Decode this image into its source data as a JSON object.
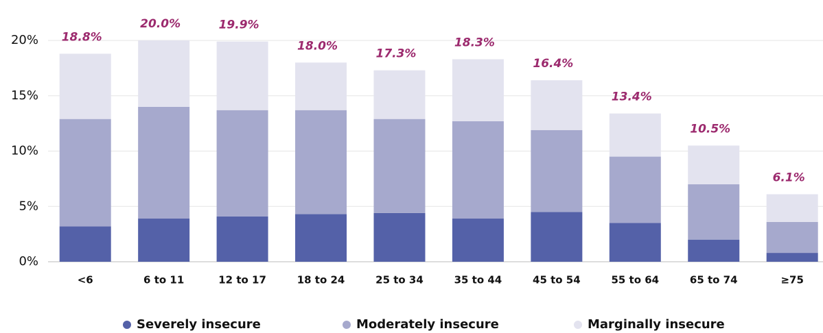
{
  "chart_data": {
    "type": "stacked_bar",
    "categories": [
      "<6",
      "6 to 11",
      "12 to 17",
      "18 to 24",
      "25 to 34",
      "35 to 44",
      "45 to 54",
      "55 to 64",
      "65 to 74",
      "≥75"
    ],
    "series": [
      {
        "name": "Severely insecure",
        "color": "#5461a8",
        "values": [
          3.2,
          3.9,
          4.1,
          4.3,
          4.4,
          3.9,
          4.5,
          3.5,
          2.0,
          0.8
        ]
      },
      {
        "name": "Moderately insecure",
        "color": "#a6a9cd",
        "values": [
          9.7,
          10.1,
          9.6,
          9.4,
          8.5,
          8.8,
          7.4,
          6.0,
          5.0,
          2.8
        ]
      },
      {
        "name": "Marginally insecure",
        "color": "#e3e3ef",
        "values": [
          5.9,
          6.0,
          6.2,
          4.3,
          4.4,
          5.6,
          4.5,
          3.9,
          3.5,
          2.5
        ]
      }
    ],
    "totals": {
      "values": [
        18.8,
        20.0,
        19.9,
        18.0,
        17.3,
        18.3,
        16.4,
        13.4,
        10.5,
        6.1
      ],
      "value_labels": [
        "18.8%",
        "20.0%",
        "19.9%",
        "18.0%",
        "17.3%",
        "18.3%",
        "16.4%",
        "13.4%",
        "10.5%",
        "6.1%"
      ]
    },
    "ylim": [
      0,
      20
    ],
    "yticks": [
      {
        "value": 0,
        "label": "0%"
      },
      {
        "value": 5,
        "label": "5%"
      },
      {
        "value": 10,
        "label": "10%"
      },
      {
        "value": 15,
        "label": "15%"
      },
      {
        "value": 20,
        "label": "20%"
      }
    ],
    "grid": true,
    "legend": "bottom"
  }
}
